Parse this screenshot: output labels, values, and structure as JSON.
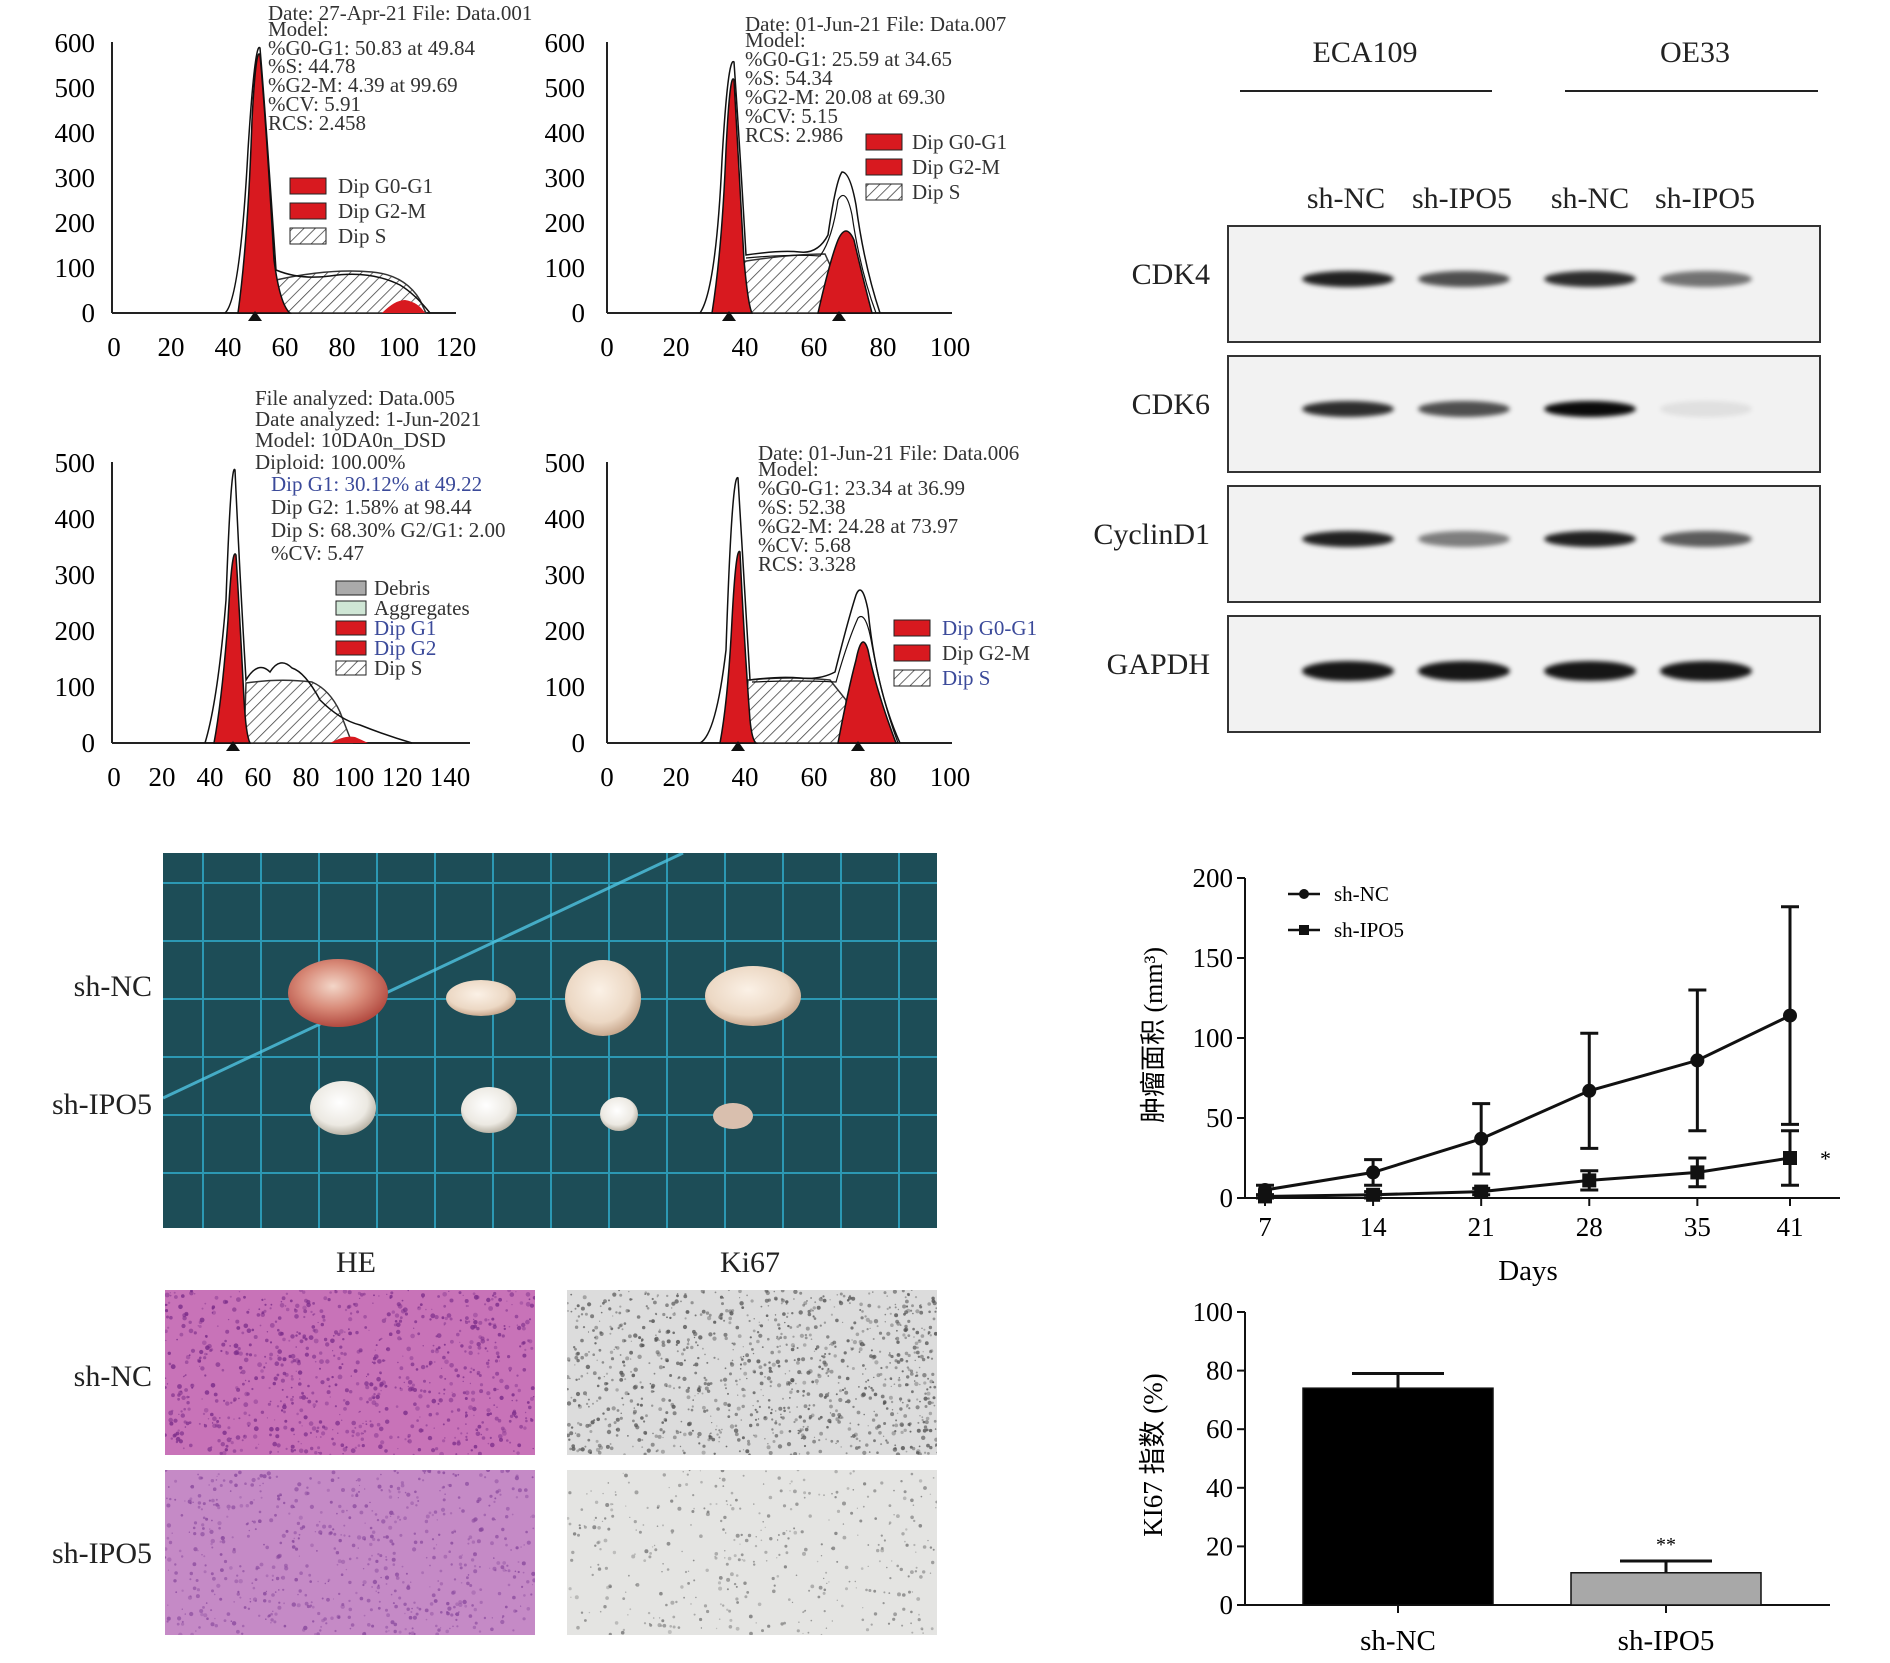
{
  "flow_panels": [
    {
      "title_line": "Date: 27-Apr-21 File: Data.001",
      "info": [
        "Model:",
        "%G0-G1: 50.83 at 49.84",
        "%S: 44.78",
        "%G2-M: 4.39 at 99.69",
        "%CV: 5.91",
        "RCS: 2.458"
      ],
      "legend": [
        "Dip G0-G1",
        "Dip G2-M",
        "Dip S"
      ],
      "yticks": [
        "0",
        "100",
        "200",
        "300",
        "400",
        "500",
        "600"
      ],
      "xticks": [
        "0",
        "20",
        "40",
        "60",
        "80",
        "100",
        "120"
      ]
    },
    {
      "title_line": "Date: 01-Jun-21 File: Data.007",
      "info": [
        "Model:",
        "%G0-G1: 25.59 at 34.65",
        "%S: 54.34",
        "%G2-M: 20.08 at 69.30",
        "%CV: 5.15",
        "RCS: 2.986"
      ],
      "legend": [
        "Dip G0-G1",
        "Dip G2-M",
        "Dip S"
      ],
      "yticks": [
        "0",
        "100",
        "200",
        "300",
        "400",
        "500",
        "600"
      ],
      "xticks": [
        "0",
        "20",
        "40",
        "60",
        "80",
        "100"
      ]
    },
    {
      "title_line": "File analyzed: Data.005",
      "info": [
        "Date analyzed: 1-Jun-2021",
        "Model: 10DA0n_DSD",
        "Diploid: 100.00%",
        "Dip G1: 30.12% at 49.22",
        "Dip G2: 1.58% at 98.44",
        "Dip S: 68.30% G2/G1: 2.00",
        "%CV: 5.47"
      ],
      "legend": [
        "Debris",
        "Aggregates",
        "Dip G1",
        "Dip G2",
        "Dip S"
      ],
      "yticks": [
        "0",
        "100",
        "200",
        "300",
        "400",
        "500"
      ],
      "xticks": [
        "0",
        "20",
        "40",
        "60",
        "80",
        "100",
        "120",
        "140"
      ]
    },
    {
      "title_line": "Date: 01-Jun-21 File: Data.006",
      "info": [
        "Model:",
        "%G0-G1: 23.34 at 36.99",
        "%S: 52.38",
        "%G2-M: 24.28 at 73.97",
        "%CV: 5.68",
        "RCS: 3.328"
      ],
      "legend": [
        "Dip G0-G1",
        "Dip G2-M",
        "Dip S"
      ],
      "yticks": [
        "0",
        "100",
        "200",
        "300",
        "400",
        "500"
      ],
      "xticks": [
        "0",
        "20",
        "40",
        "60",
        "80",
        "100"
      ]
    }
  ],
  "western_blot": {
    "cell_lines": [
      "ECA109",
      "OE33"
    ],
    "lanes": [
      "sh-NC",
      "sh-IPO5",
      "sh-NC",
      "sh-IPO5"
    ],
    "proteins": [
      "CDK4",
      "CDK6",
      "CyclinD1",
      "GAPDH"
    ],
    "band_intensity": [
      [
        0.9,
        0.7,
        0.85,
        0.55
      ],
      [
        0.85,
        0.7,
        1.0,
        0.08
      ],
      [
        0.9,
        0.5,
        0.9,
        0.65
      ],
      [
        0.95,
        0.95,
        0.95,
        0.95
      ]
    ]
  },
  "tumor_photo": {
    "rows": [
      "sh-NC",
      "sh-IPO5"
    ]
  },
  "histology": {
    "columns": [
      "HE",
      "Ki67"
    ],
    "rows": [
      "sh-NC",
      "sh-IPO5"
    ]
  },
  "chart_data": [
    {
      "type": "line",
      "title": "",
      "xlabel": "Days",
      "ylabel": "肿瘤面积 (mm³)",
      "x": [
        7,
        14,
        21,
        28,
        35,
        41
      ],
      "xticks": [
        "7",
        "14",
        "21",
        "28",
        "35",
        "41"
      ],
      "yticks": [
        "0",
        "50",
        "100",
        "150",
        "200"
      ],
      "ylim": [
        0,
        200
      ],
      "legend_position": "top-left",
      "series": [
        {
          "name": "sh-NC",
          "values": [
            5,
            16,
            37,
            67,
            86,
            114
          ],
          "errors": [
            3,
            8,
            22,
            36,
            44,
            68
          ]
        },
        {
          "name": "sh-IPO5",
          "values": [
            1,
            2,
            4,
            11,
            16,
            25
          ],
          "errors": [
            1,
            2,
            2,
            6,
            9,
            17
          ]
        }
      ],
      "annotation": "*"
    },
    {
      "type": "bar",
      "title": "",
      "xlabel": "",
      "ylabel": "KI67 指数 (%)",
      "categories": [
        "sh-NC",
        "sh-IPO5"
      ],
      "values": [
        74,
        11
      ],
      "errors": [
        5,
        4
      ],
      "colors": [
        "#000000",
        "#a8a8a8"
      ],
      "yticks": [
        "0",
        "20",
        "40",
        "60",
        "80",
        "100"
      ],
      "ylim": [
        0,
        100
      ],
      "annotation": "**"
    }
  ]
}
